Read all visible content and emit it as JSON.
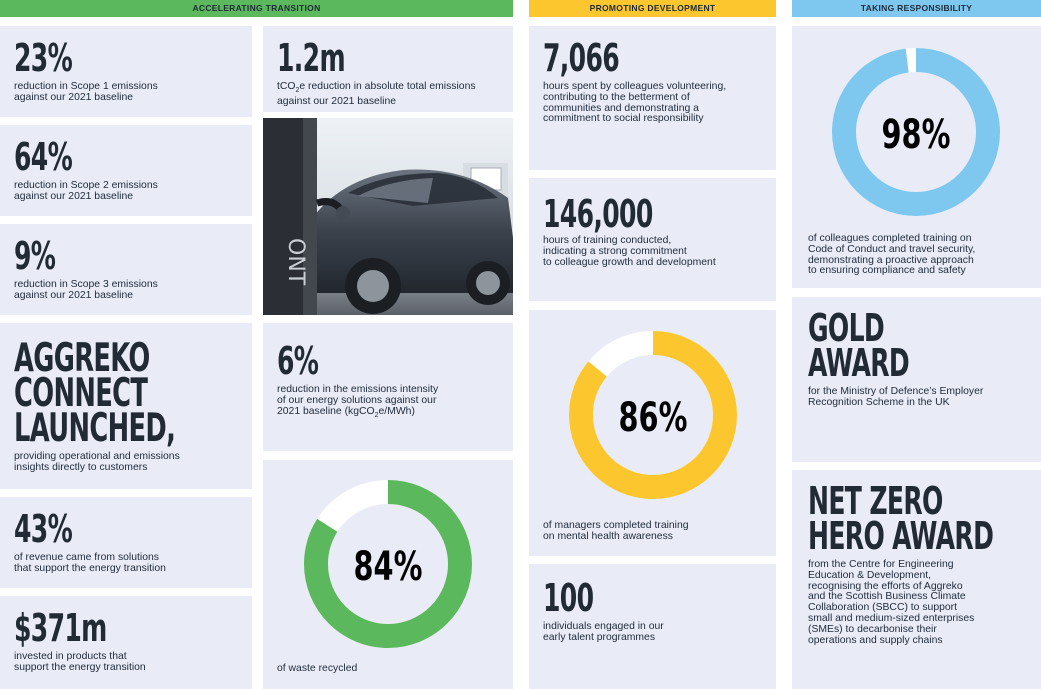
{
  "columns": {
    "accelerating": {
      "label": "ACCELERATING TRANSITION",
      "color": "#5cb85c"
    },
    "promoting": {
      "label": "PROMOTING DEVELOPMENT",
      "color": "#fcc72e"
    },
    "responsibility": {
      "label": "TAKING RESPONSIBILITY",
      "color": "#7ec8ef"
    }
  },
  "stats": {
    "scope1": {
      "value": "23%",
      "desc": "reduction in Scope 1 emissions\nagainst our 2021 baseline"
    },
    "scope2": {
      "value": "64%",
      "desc": "reduction in Scope 2 emissions\nagainst our 2021 baseline"
    },
    "scope3": {
      "value": "9%",
      "desc": "reduction in Scope 3 emissions\nagainst our 2021 baseline"
    },
    "connect": {
      "value": "AGGREKO\nCONNECT\nLAUNCHED,",
      "desc": "providing operational and emissions\ninsights directly to customers"
    },
    "revenue": {
      "value": "43%",
      "desc": "of revenue came from solutions\nthat support the energy transition"
    },
    "invested": {
      "value": "$371m",
      "desc": "invested in products that\nsupport the energy transition"
    },
    "tco2e": {
      "value": "1.2m",
      "desc_pre": "tCO",
      "desc_sub": "2",
      "desc_post": "e reduction in absolute total emissions\nagainst our 2021 baseline"
    },
    "intensity": {
      "value": "6%",
      "desc_pre": "reduction in the emissions intensity\nof our energy solutions against our\n2021 baseline (kgCO",
      "desc_sub": "2",
      "desc_post": "e/MWh)"
    },
    "waste": {
      "value": "84%",
      "percent": 84,
      "desc": "of waste recycled"
    },
    "volunteering": {
      "value": "7,066",
      "desc": "hours spent by colleagues volunteering,\ncontributing to the betterment of\ncommunities and demonstrating a\ncommitment to social responsibility"
    },
    "training": {
      "value": "146,000",
      "desc": "hours of training conducted,\nindicating a strong commitment\nto colleague growth and development"
    },
    "mental": {
      "value": "86%",
      "percent": 86,
      "desc": "of managers completed training\non mental health awareness"
    },
    "talent": {
      "value": "100",
      "desc": "individuals engaged in our\nearly talent programmes"
    },
    "conduct": {
      "value": "98%",
      "percent": 98,
      "desc": "of colleagues completed training on\nCode of Conduct and travel security,\ndemonstrating a proactive approach\nto ensuring compliance and safety"
    },
    "gold": {
      "value": "GOLD\nAWARD",
      "desc": "for the Ministry of Defence’s Employer\nRecognition Scheme in the UK"
    },
    "netzero": {
      "value": "NET ZERO\nHERO AWARD",
      "desc": "from the Centre for Engineering\nEducation & Development,\nrecognising the efforts of Aggreko\nand the Scottish Business Climate\nCollaboration (SBCC) to support\nsmall and medium-sized enterprises\n(SMEs) to decarbonise their\noperations and supply chains"
    }
  },
  "photo": {
    "charger_text": "ONT",
    "depicts": "electric car charging"
  }
}
